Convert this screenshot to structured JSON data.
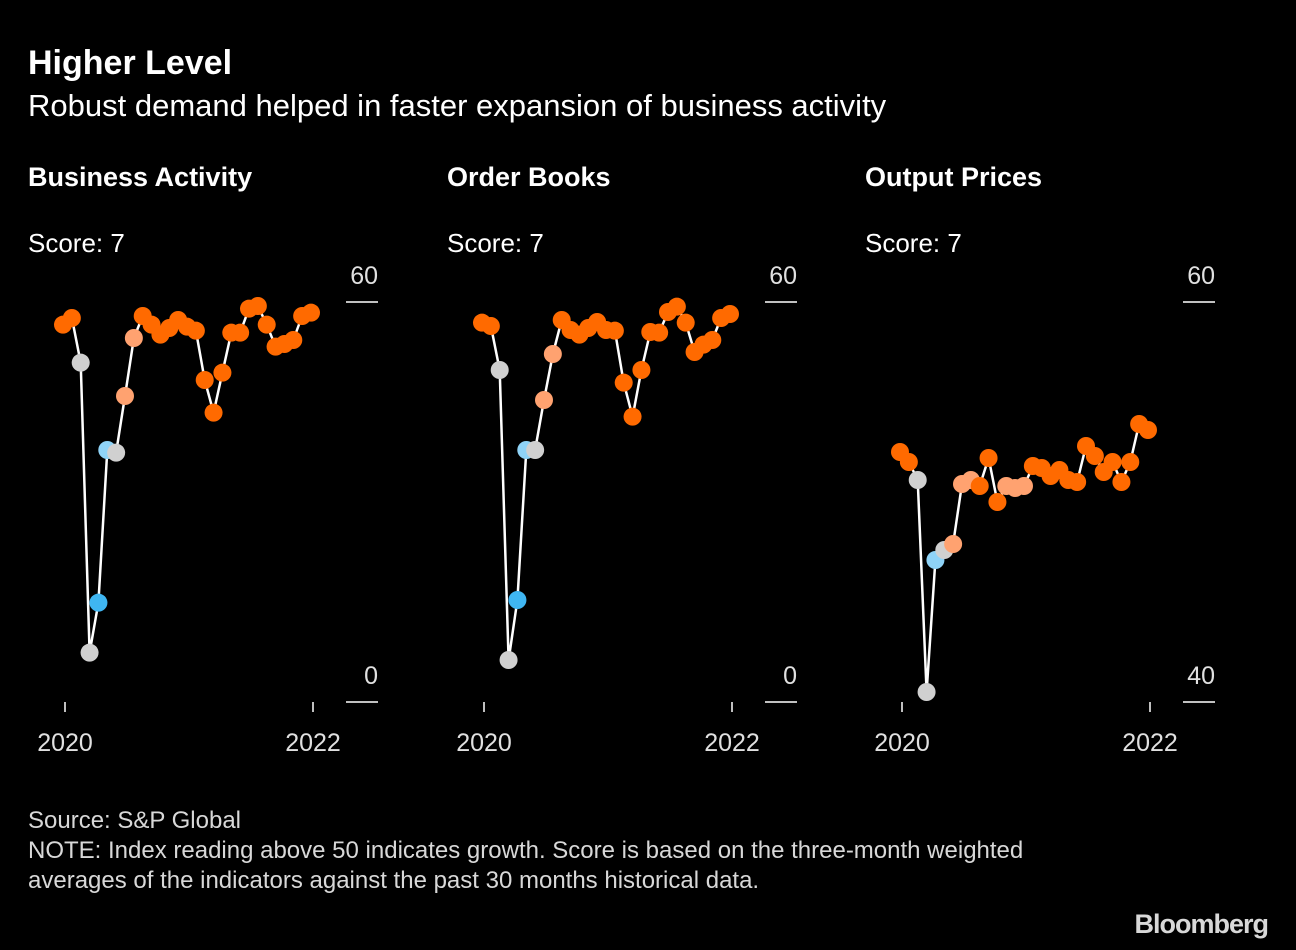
{
  "title": "Higher Level",
  "subtitle": "Robust demand helped in faster expansion of business activity",
  "source": "Source: S&P Global",
  "note": "NOTE: Index reading above 50 indicates growth. Score is based on the three-month weighted averages of the indicators against the past 30 months historical data.",
  "brand": "Bloomberg",
  "chart_data": [
    {
      "type": "line",
      "title": "Business Activity",
      "score_label": "Score: 7",
      "line_color": "#ffffff",
      "categories": [
        "2020",
        null,
        null,
        null,
        null,
        null,
        null,
        null,
        null,
        null,
        null,
        null,
        null,
        null,
        null,
        null,
        null,
        null,
        null,
        null,
        null,
        null,
        null,
        null,
        null,
        null,
        null,
        null,
        "2022"
      ],
      "values": [
        56.6,
        57.6,
        50.9,
        7.4,
        14.9,
        37.8,
        37.4,
        45.9,
        54.6,
        57.9,
        56.6,
        55.1,
        56.1,
        57.3,
        56.3,
        55.7,
        48.3,
        43.4,
        49.4,
        55.4,
        55.4,
        59.0,
        59.4,
        56.6,
        53.3,
        53.7,
        54.3,
        57.9,
        58.4
      ],
      "colors": [
        "#ff6a00",
        "#ff6a00",
        "#d0d0d0",
        "#d0d0d0",
        "#3fb6f2",
        "#8fd3f7",
        "#d0d0d0",
        "#ffa270",
        "#ffa270",
        "#ff6a00",
        "#ff6a00",
        "#ff6a00",
        "#ff6a00",
        "#ff6a00",
        "#ff6a00",
        "#ff6a00",
        "#ff6a00",
        "#ff6a00",
        "#ff6a00",
        "#ff6a00",
        "#ff6a00",
        "#ff6a00",
        "#ff6a00",
        "#ff6a00",
        "#ff6a00",
        "#ff6a00",
        "#ff6a00",
        "#ff6a00",
        "#ff6a00"
      ],
      "ylim": [
        0,
        60
      ],
      "yticks": [
        0,
        60
      ]
    },
    {
      "type": "line",
      "title": "Order Books",
      "score_label": "Score: 7",
      "line_color": "#ffffff",
      "categories": [
        "2020",
        null,
        null,
        null,
        null,
        null,
        null,
        null,
        null,
        null,
        null,
        null,
        null,
        null,
        null,
        null,
        null,
        null,
        null,
        null,
        null,
        null,
        null,
        null,
        null,
        null,
        null,
        null,
        "2022"
      ],
      "values": [
        56.9,
        56.4,
        49.8,
        6.3,
        15.3,
        37.8,
        37.8,
        45.3,
        52.2,
        57.3,
        55.8,
        55.1,
        56.1,
        57.0,
        55.8,
        55.7,
        47.9,
        42.8,
        49.8,
        55.5,
        55.4,
        58.5,
        59.3,
        56.9,
        52.5,
        53.6,
        54.3,
        57.6,
        58.2
      ],
      "colors": [
        "#ff6a00",
        "#ff6a00",
        "#d0d0d0",
        "#d0d0d0",
        "#3fb6f2",
        "#8fd3f7",
        "#d0d0d0",
        "#ffa270",
        "#ffa270",
        "#ff6a00",
        "#ff6a00",
        "#ff6a00",
        "#ff6a00",
        "#ff6a00",
        "#ff6a00",
        "#ff6a00",
        "#ff6a00",
        "#ff6a00",
        "#ff6a00",
        "#ff6a00",
        "#ff6a00",
        "#ff6a00",
        "#ff6a00",
        "#ff6a00",
        "#ff6a00",
        "#ff6a00",
        "#ff6a00",
        "#ff6a00",
        "#ff6a00"
      ],
      "ylim": [
        0,
        60
      ],
      "yticks": [
        0,
        60
      ]
    },
    {
      "type": "line",
      "title": "Output Prices",
      "score_label": "Score: 7",
      "line_color": "#ffffff",
      "categories": [
        "2020",
        null,
        null,
        null,
        null,
        null,
        null,
        null,
        null,
        null,
        null,
        null,
        null,
        null,
        null,
        null,
        null,
        null,
        null,
        null,
        null,
        null,
        null,
        null,
        null,
        null,
        null,
        null,
        "2022"
      ],
      "values": [
        52.5,
        52.0,
        51.1,
        40.5,
        47.1,
        47.6,
        47.9,
        50.9,
        51.1,
        50.8,
        52.2,
        50.0,
        50.8,
        50.7,
        50.8,
        51.8,
        51.7,
        51.3,
        51.6,
        51.1,
        51.0,
        52.8,
        52.3,
        51.5,
        52.0,
        51.0,
        52.0,
        53.9,
        53.6
      ],
      "colors": [
        "#ff6a00",
        "#ff6a00",
        "#d0d0d0",
        "#d0d0d0",
        "#8fd3f7",
        "#d0d0d0",
        "#ffa270",
        "#ffa270",
        "#ffa270",
        "#ff6a00",
        "#ff6a00",
        "#ff6a00",
        "#ffa270",
        "#ffa270",
        "#ffa270",
        "#ff6a00",
        "#ff6a00",
        "#ff6a00",
        "#ff6a00",
        "#ff6a00",
        "#ff6a00",
        "#ff6a00",
        "#ff6a00",
        "#ff6a00",
        "#ff6a00",
        "#ff6a00",
        "#ff6a00",
        "#ff6a00",
        "#ff6a00"
      ],
      "ylim": [
        40,
        60
      ],
      "yticks": [
        40,
        60
      ]
    }
  ]
}
